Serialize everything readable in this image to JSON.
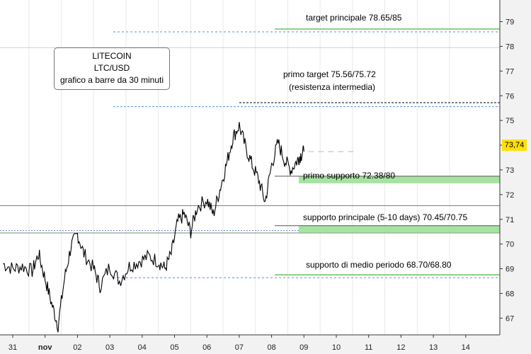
{
  "chart_data": {
    "type": "bar",
    "title": "LITECOIN",
    "subtitle": "LTC/USD",
    "caption": "grafico a barre da 30 minuti",
    "x_tick_labels": [
      "31",
      "nov",
      "02",
      "03",
      "04",
      "05",
      "06",
      "07",
      "08",
      "09",
      "10",
      "11",
      "12",
      "13",
      "14"
    ],
    "y_ticks": [
      67,
      68,
      69,
      70,
      71,
      72,
      73,
      74,
      75,
      76,
      77,
      78,
      79
    ],
    "ylim": [
      66.4,
      79.9
    ],
    "last_price": "73,74",
    "price_path": [
      [
        -0.3,
        69.2
      ],
      [
        0.0,
        69.0
      ],
      [
        0.3,
        69.1
      ],
      [
        0.6,
        68.9
      ],
      [
        0.8,
        69.6
      ],
      [
        1.0,
        68.6
      ],
      [
        1.2,
        67.6
      ],
      [
        1.4,
        66.7
      ],
      [
        1.6,
        68.6
      ],
      [
        1.8,
        69.9
      ],
      [
        2.0,
        70.4
      ],
      [
        2.2,
        69.6
      ],
      [
        2.5,
        69.0
      ],
      [
        2.7,
        68.3
      ],
      [
        3.0,
        69.1
      ],
      [
        3.3,
        68.5
      ],
      [
        3.6,
        69.1
      ],
      [
        3.9,
        69.3
      ],
      [
        4.2,
        69.5
      ],
      [
        4.5,
        69.3
      ],
      [
        4.7,
        69.0
      ],
      [
        4.9,
        69.6
      ],
      [
        5.1,
        70.9
      ],
      [
        5.3,
        71.2
      ],
      [
        5.5,
        70.5
      ],
      [
        5.7,
        71.5
      ],
      [
        6.0,
        71.8
      ],
      [
        6.2,
        71.2
      ],
      [
        6.4,
        72.2
      ],
      [
        6.6,
        73.2
      ],
      [
        6.8,
        74.3
      ],
      [
        7.0,
        74.8
      ],
      [
        7.2,
        73.9
      ],
      [
        7.4,
        73.2
      ],
      [
        7.6,
        72.6
      ],
      [
        7.8,
        71.7
      ],
      [
        8.0,
        73.2
      ],
      [
        8.2,
        74.1
      ],
      [
        8.4,
        73.4
      ],
      [
        8.6,
        73.0
      ],
      [
        8.8,
        73.4
      ],
      [
        8.9,
        73.6
      ],
      [
        9.0,
        73.74
      ]
    ],
    "levels": [
      {
        "label": "target principale 78.65/85",
        "value": 78.7,
        "color": "#66c266",
        "style": "solid"
      },
      {
        "label": "primo target 75.56/75.72",
        "value": 75.72,
        "color": "#000000",
        "style": "dashed"
      },
      {
        "label": "(resistenza intermedia)",
        "value": 75.56,
        "color": "#5b8fd9",
        "style": "dashed"
      },
      {
        "label": "primo supporto 72.38/80",
        "value": 72.6,
        "color": "#66c266",
        "style": "band"
      },
      {
        "label": "supporto principale (5-10 days) 70.45/70.75",
        "value": 70.6,
        "color": "#66c266",
        "style": "band"
      },
      {
        "label": "supporto di medio periodo 68.70/68.80",
        "value": 68.75,
        "color": "#66c266",
        "style": "solid"
      }
    ]
  }
}
